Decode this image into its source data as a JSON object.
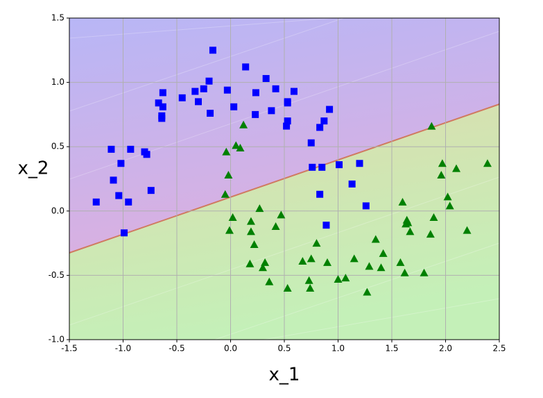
{
  "chart_data": {
    "type": "scatter",
    "xlabel": "x_1",
    "ylabel": "x_2",
    "xlim": [
      -1.5,
      2.5
    ],
    "xticks": [
      -1.5,
      {
        "value": -1.0,
        "label": "-1.0"
      },
      -0.5,
      {
        "value": 0,
        "label": "0.0"
      },
      0.5,
      {
        "value": 1.0,
        "label": "1.0"
      },
      1.5,
      {
        "value": 2.0,
        "label": "2.0"
      },
      2.5
    ],
    "ylim": [
      -1.0,
      1.5
    ],
    "yticks": [
      {
        "value": -1.0,
        "label": "-1.0"
      },
      -0.5,
      {
        "value": 0,
        "label": "0.0"
      },
      0.5,
      {
        "value": 1.0,
        "label": "1.0"
      },
      1.5
    ],
    "grid": true,
    "series": [
      {
        "color": "#0000ff",
        "marker": "square",
        "x": [
          -0.165,
          0.14,
          0.33,
          -0.2,
          -0.33,
          -0.25,
          -0.3,
          -0.45,
          -0.63,
          -0.67,
          -0.63,
          -0.64,
          -0.64,
          -0.19,
          -0.03,
          0.03,
          0.235,
          0.23,
          0.38,
          0.42,
          0.53,
          0.59,
          0.53,
          0.52,
          0.53,
          0.75,
          0.83,
          0.87,
          0.92,
          -1.11,
          -1.02,
          -0.93,
          -0.8,
          -0.78,
          -1.09,
          -1.04,
          -0.95,
          -0.74,
          -1.25,
          -0.99,
          0.76,
          0.85,
          1.01,
          1.2,
          1.13,
          0.83,
          1.26,
          0.89
        ],
        "y": [
          1.25,
          1.12,
          1.03,
          1.01,
          0.93,
          0.95,
          0.85,
          0.88,
          0.81,
          0.84,
          0.92,
          0.74,
          0.72,
          0.76,
          0.94,
          0.81,
          0.92,
          0.75,
          0.78,
          0.95,
          0.85,
          0.93,
          0.84,
          0.66,
          0.7,
          0.53,
          0.65,
          0.7,
          0.79,
          0.48,
          0.37,
          0.48,
          0.46,
          0.44,
          0.24,
          0.12,
          0.07,
          0.16,
          0.07,
          -0.17,
          0.34,
          0.34,
          0.36,
          0.37,
          0.21,
          0.13,
          0.04,
          -0.11
        ]
      },
      {
        "color": "#008000",
        "marker": "triangle",
        "x": [
          0.12,
          -0.04,
          0.05,
          0.09,
          -0.02,
          -0.05,
          0.02,
          -0.01,
          0.19,
          0.19,
          0.22,
          0.27,
          0.47,
          0.42,
          0.18,
          0.3,
          0.32,
          0.36,
          0.53,
          0.67,
          0.75,
          0.8,
          0.9,
          0.73,
          0.74,
          1.0,
          1.07,
          1.15,
          1.29,
          1.27,
          1.35,
          1.4,
          1.42,
          1.6,
          1.64,
          1.63,
          1.65,
          1.67,
          1.58,
          1.62,
          1.8,
          1.86,
          1.89,
          1.87,
          1.97,
          1.96,
          2.1,
          2.02,
          2.04,
          2.2,
          2.39
        ],
        "y": [
          0.67,
          0.46,
          0.51,
          0.49,
          0.28,
          0.13,
          -0.05,
          -0.15,
          -0.08,
          -0.16,
          -0.26,
          0.02,
          -0.03,
          -0.12,
          -0.41,
          -0.44,
          -0.4,
          -0.55,
          -0.6,
          -0.39,
          -0.37,
          -0.25,
          -0.4,
          -0.54,
          -0.6,
          -0.53,
          -0.52,
          -0.37,
          -0.43,
          -0.63,
          -0.22,
          -0.44,
          -0.33,
          0.07,
          -0.07,
          -0.1,
          -0.09,
          -0.16,
          -0.4,
          -0.48,
          -0.48,
          -0.18,
          -0.05,
          0.66,
          0.37,
          0.28,
          0.33,
          0.11,
          0.04,
          -0.15,
          0.37
        ]
      }
    ]
  }
}
